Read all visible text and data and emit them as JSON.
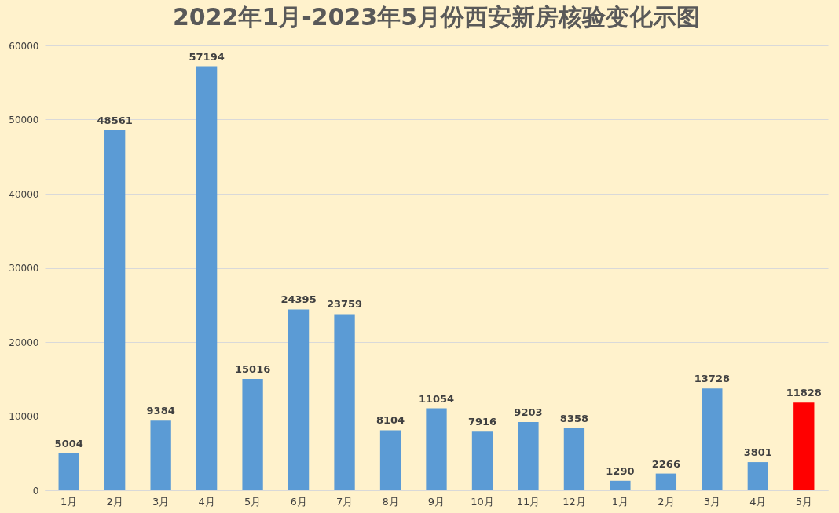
{
  "chart_data": {
    "type": "bar",
    "title": "2022年1月-2023年5月份西安新房核验变化示图",
    "categories": [
      "1月",
      "2月",
      "3月",
      "4月",
      "5月",
      "6月",
      "7月",
      "8月",
      "9月",
      "10月",
      "11月",
      "12月",
      "1月",
      "2月",
      "3月",
      "4月",
      "5月"
    ],
    "values": [
      5004,
      48561,
      9384,
      57194,
      15016,
      24395,
      23759,
      8104,
      11054,
      7916,
      9203,
      8358,
      1290,
      2266,
      13728,
      3801,
      11828
    ],
    "colors": [
      "#5b9bd5",
      "#5b9bd5",
      "#5b9bd5",
      "#5b9bd5",
      "#5b9bd5",
      "#5b9bd5",
      "#5b9bd5",
      "#5b9bd5",
      "#5b9bd5",
      "#5b9bd5",
      "#5b9bd5",
      "#5b9bd5",
      "#5b9bd5",
      "#5b9bd5",
      "#5b9bd5",
      "#5b9bd5",
      "#ff0000"
    ],
    "ylim": [
      0,
      60000
    ],
    "yticks": [
      0,
      10000,
      20000,
      30000,
      40000,
      50000,
      60000
    ],
    "grid": "y",
    "data_labels": true
  }
}
